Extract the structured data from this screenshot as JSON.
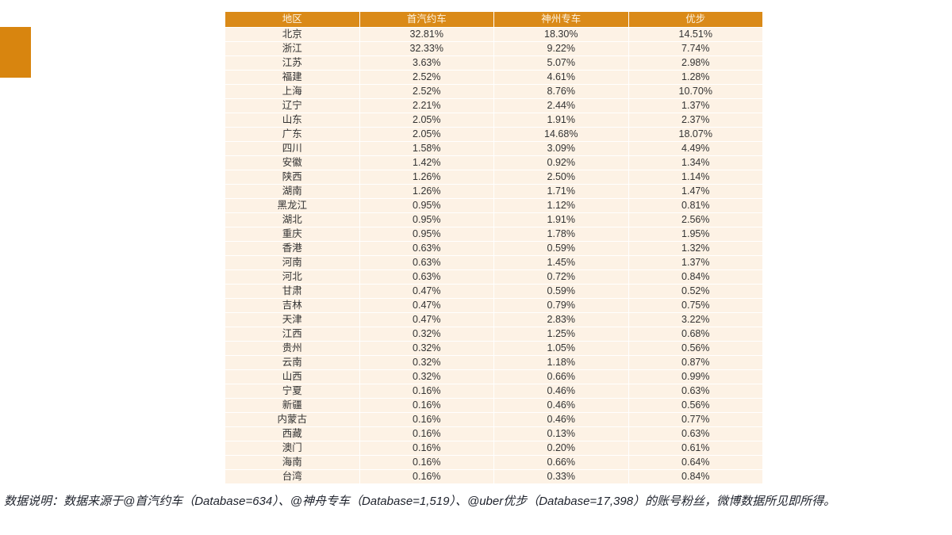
{
  "colors": {
    "accent_orange_square": "#D8850F",
    "header_orange": "#DA8A18",
    "header_text": "#FCF3E2",
    "row_background": "#FDF2E5",
    "grid_separator": "#FFFFFF",
    "body_text": "#333333",
    "footnote_text": "#20242E"
  },
  "chart_data": {
    "type": "table",
    "columns": [
      "地区",
      "首汽约车",
      "神州专车",
      "优步"
    ],
    "rows": [
      [
        "北京",
        "32.81%",
        "18.30%",
        "14.51%"
      ],
      [
        "浙江",
        "32.33%",
        "9.22%",
        "7.74%"
      ],
      [
        "江苏",
        "3.63%",
        "5.07%",
        "2.98%"
      ],
      [
        "福建",
        "2.52%",
        "4.61%",
        "1.28%"
      ],
      [
        "上海",
        "2.52%",
        "8.76%",
        "10.70%"
      ],
      [
        "辽宁",
        "2.21%",
        "2.44%",
        "1.37%"
      ],
      [
        "山东",
        "2.05%",
        "1.91%",
        "2.37%"
      ],
      [
        "广东",
        "2.05%",
        "14.68%",
        "18.07%"
      ],
      [
        "四川",
        "1.58%",
        "3.09%",
        "4.49%"
      ],
      [
        "安徽",
        "1.42%",
        "0.92%",
        "1.34%"
      ],
      [
        "陕西",
        "1.26%",
        "2.50%",
        "1.14%"
      ],
      [
        "湖南",
        "1.26%",
        "1.71%",
        "1.47%"
      ],
      [
        "黑龙江",
        "0.95%",
        "1.12%",
        "0.81%"
      ],
      [
        "湖北",
        "0.95%",
        "1.91%",
        "2.56%"
      ],
      [
        "重庆",
        "0.95%",
        "1.78%",
        "1.95%"
      ],
      [
        "香港",
        "0.63%",
        "0.59%",
        "1.32%"
      ],
      [
        "河南",
        "0.63%",
        "1.45%",
        "1.37%"
      ],
      [
        "河北",
        "0.63%",
        "0.72%",
        "0.84%"
      ],
      [
        "甘肃",
        "0.47%",
        "0.59%",
        "0.52%"
      ],
      [
        "吉林",
        "0.47%",
        "0.79%",
        "0.75%"
      ],
      [
        "天津",
        "0.47%",
        "2.83%",
        "3.22%"
      ],
      [
        "江西",
        "0.32%",
        "1.25%",
        "0.68%"
      ],
      [
        "贵州",
        "0.32%",
        "1.05%",
        "0.56%"
      ],
      [
        "云南",
        "0.32%",
        "1.18%",
        "0.87%"
      ],
      [
        "山西",
        "0.32%",
        "0.66%",
        "0.99%"
      ],
      [
        "宁夏",
        "0.16%",
        "0.46%",
        "0.63%"
      ],
      [
        "新疆",
        "0.16%",
        "0.46%",
        "0.56%"
      ],
      [
        "内蒙古",
        "0.16%",
        "0.46%",
        "0.77%"
      ],
      [
        "西藏",
        "0.16%",
        "0.13%",
        "0.63%"
      ],
      [
        "澳门",
        "0.16%",
        "0.20%",
        "0.61%"
      ],
      [
        "海南",
        "0.16%",
        "0.66%",
        "0.64%"
      ],
      [
        "台湾",
        "0.16%",
        "0.33%",
        "0.84%"
      ]
    ]
  },
  "footnote": "数据说明：数据来源于@首汽约车（Database=634）、@神舟专车（Database=1,519）、@uber优步（Database=17,398）的账号粉丝，微博数据所见即所得。"
}
